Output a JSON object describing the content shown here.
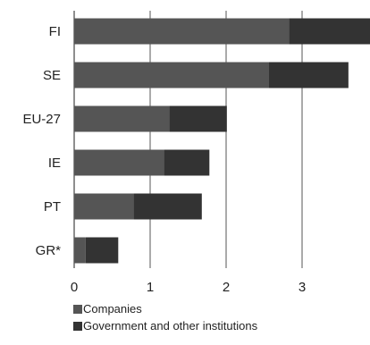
{
  "chart_data": {
    "type": "bar",
    "orientation": "horizontal",
    "stacked": true,
    "categories": [
      "FI",
      "SE",
      "EU-27",
      "IE",
      "PT",
      "GR*"
    ],
    "series": [
      {
        "name": "Companies",
        "values": [
          2.83,
          2.56,
          1.25,
          1.18,
          0.78,
          0.15
        ],
        "color": "#555555"
      },
      {
        "name": "Government and other institutions",
        "values": [
          1.07,
          1.05,
          0.76,
          0.6,
          0.9,
          0.43
        ],
        "color": "#333333"
      }
    ],
    "xlim": [
      0,
      3.9
    ],
    "xticks": [
      "0",
      "1",
      "2",
      "3"
    ],
    "grid": true,
    "legend_position": "bottom-left"
  }
}
